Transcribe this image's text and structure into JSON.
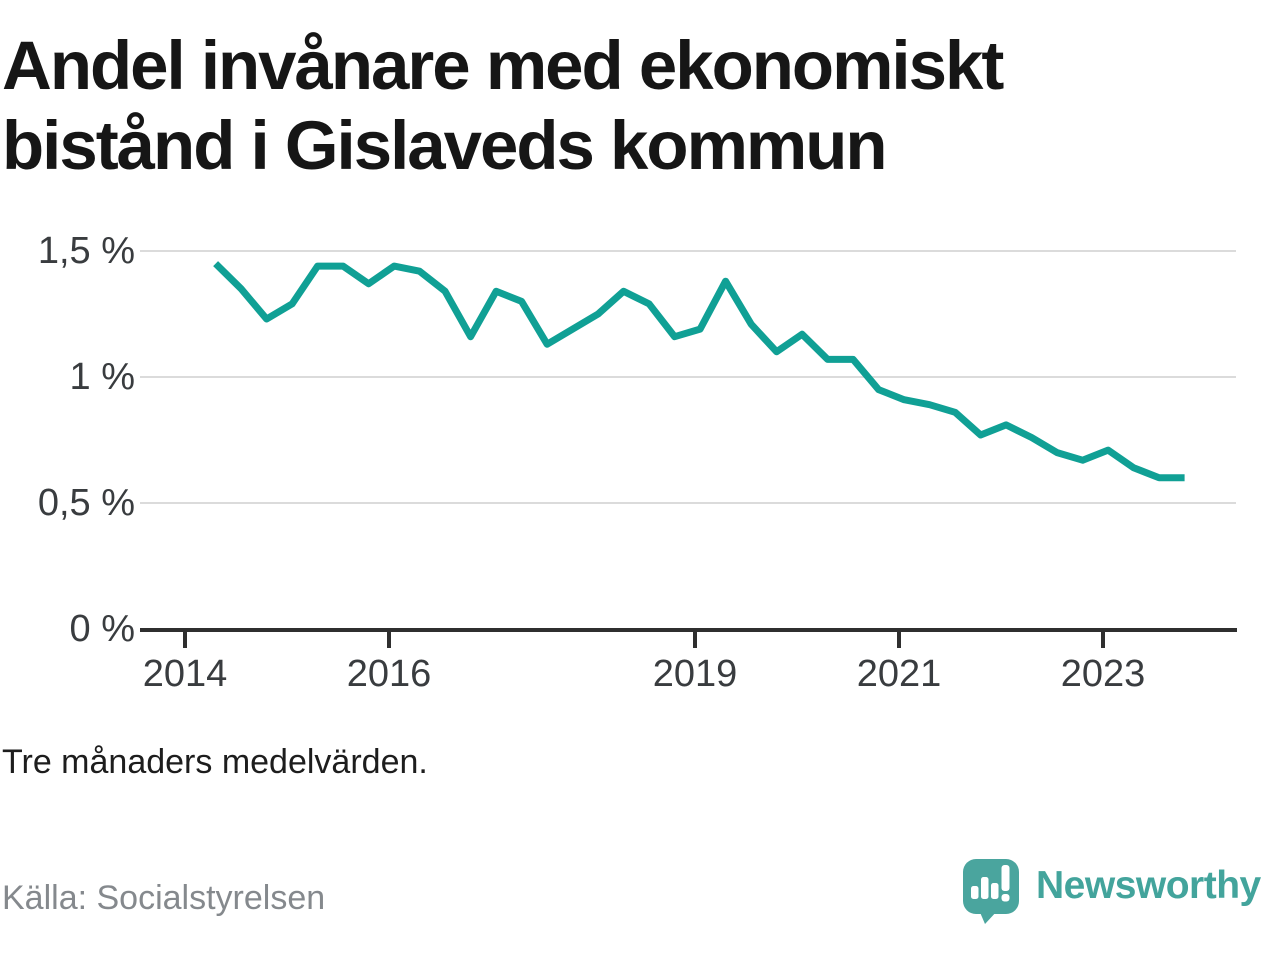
{
  "chart": {
    "title": "Andel invånare med ekonomiskt bistånd i Gislaveds kommun",
    "title_lines": [
      "Andel invånare med ekonomiskt",
      "bistånd i Gislaveds kommun"
    ],
    "note": "Tre månaders medelvärden."
  },
  "footer": {
    "source": "Källa: Socialstyrelsen",
    "brand": "Newsworthy"
  },
  "colors": {
    "line": "#10a095",
    "grid": "#dbdbdb",
    "axis": "#2f2f2f",
    "title_text": "#161616",
    "axis_label_text": "#393c3f",
    "note_text": "#1d1d1d",
    "source_text": "#85898d",
    "brand_teal": "#43a49c",
    "logo_bubble_teal": "#4aa59e"
  },
  "chart_data": {
    "type": "line",
    "title": "Andel invånare med ekonomiskt bistånd i Gislaveds kommun",
    "xlabel": "",
    "ylabel": "%",
    "ylim": [
      0,
      1.58
    ],
    "grid": "horizontal",
    "legend": "none",
    "y_ticks": [
      {
        "label": "1,5 %",
        "value": 1.5
      },
      {
        "label": "1 %",
        "value": 1.0
      },
      {
        "label": "0,5 %",
        "value": 0.5
      },
      {
        "label": "0 %",
        "value": 0.0
      }
    ],
    "x_ticks": [
      {
        "label": "2014",
        "year": 2014
      },
      {
        "label": "2016",
        "year": 2016
      },
      {
        "label": "2019",
        "year": 2019
      },
      {
        "label": "2021",
        "year": 2021
      },
      {
        "label": "2023",
        "year": 2023
      }
    ],
    "series": [
      {
        "name": "Andel invånare med ekonomiskt bistånd, Gislaveds kommun",
        "unit": "%",
        "x_years": [
          2014.3,
          2014.55,
          2014.8,
          2015.05,
          2015.3,
          2015.55,
          2015.8,
          2016.05,
          2016.3,
          2016.55,
          2016.8,
          2017.05,
          2017.3,
          2017.55,
          2017.8,
          2018.05,
          2018.3,
          2018.55,
          2018.8,
          2019.05,
          2019.3,
          2019.55,
          2019.8,
          2020.05,
          2020.3,
          2020.55,
          2020.8,
          2021.05,
          2021.3,
          2021.55,
          2021.8,
          2022.05,
          2022.3,
          2022.55,
          2022.8,
          2023.05,
          2023.3,
          2023.55,
          2023.8
        ],
        "values_pct": [
          1.45,
          1.35,
          1.23,
          1.29,
          1.44,
          1.44,
          1.37,
          1.44,
          1.42,
          1.34,
          1.16,
          1.34,
          1.3,
          1.13,
          1.19,
          1.25,
          1.34,
          1.29,
          1.16,
          1.19,
          1.38,
          1.21,
          1.1,
          1.17,
          1.07,
          1.07,
          0.95,
          0.91,
          0.89,
          0.86,
          0.77,
          0.81,
          0.76,
          0.7,
          0.67,
          0.71,
          0.64,
          0.6,
          0.6
        ]
      }
    ]
  }
}
